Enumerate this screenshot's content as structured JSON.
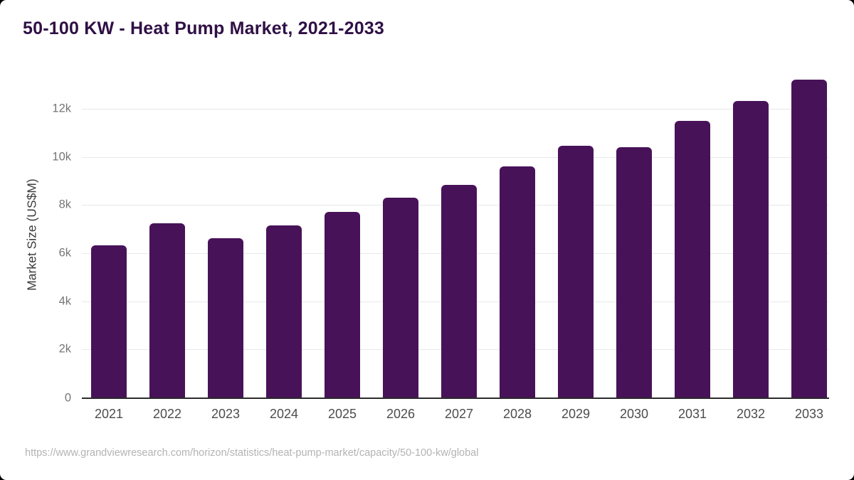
{
  "header": {
    "title": "50-100 KW - Heat Pump Market, 2021-2033"
  },
  "footer": {
    "source_url": "https://www.grandviewresearch.com/horizon/statistics/heat-pump-market/capacity/50-100-kw/global"
  },
  "colors": {
    "bar": "#481259",
    "title_text": "#2f1045",
    "gridline": "#e8e8e8",
    "axis_line": "#2b2b2b",
    "y_tick_text": "#757575",
    "x_tick_text": "#4c4c4c",
    "source_text": "#b3b3b3",
    "card_background": "#ffffff",
    "outer_background": "#000000"
  },
  "chart_data": {
    "type": "bar",
    "title": "50-100 KW - Heat Pump Market, 2021-2033",
    "categories": [
      "2021",
      "2022",
      "2023",
      "2024",
      "2025",
      "2026",
      "2027",
      "2028",
      "2029",
      "2030",
      "2031",
      "2032",
      "2033"
    ],
    "values": [
      6320,
      7230,
      6620,
      7150,
      7720,
      8300,
      8850,
      9600,
      10470,
      10410,
      11510,
      12340,
      13220
    ],
    "xlabel": "",
    "ylabel": "Market Size (US$M)",
    "ylim": [
      0,
      13500
    ],
    "yticks": [
      {
        "value": 0,
        "label": "0"
      },
      {
        "value": 2000,
        "label": "2k"
      },
      {
        "value": 4000,
        "label": "4k"
      },
      {
        "value": 6000,
        "label": "6k"
      },
      {
        "value": 8000,
        "label": "8k"
      },
      {
        "value": 10000,
        "label": "10k"
      },
      {
        "value": 12000,
        "label": "12k"
      }
    ],
    "grid": true,
    "legend": false,
    "bar_color": "#481259"
  }
}
